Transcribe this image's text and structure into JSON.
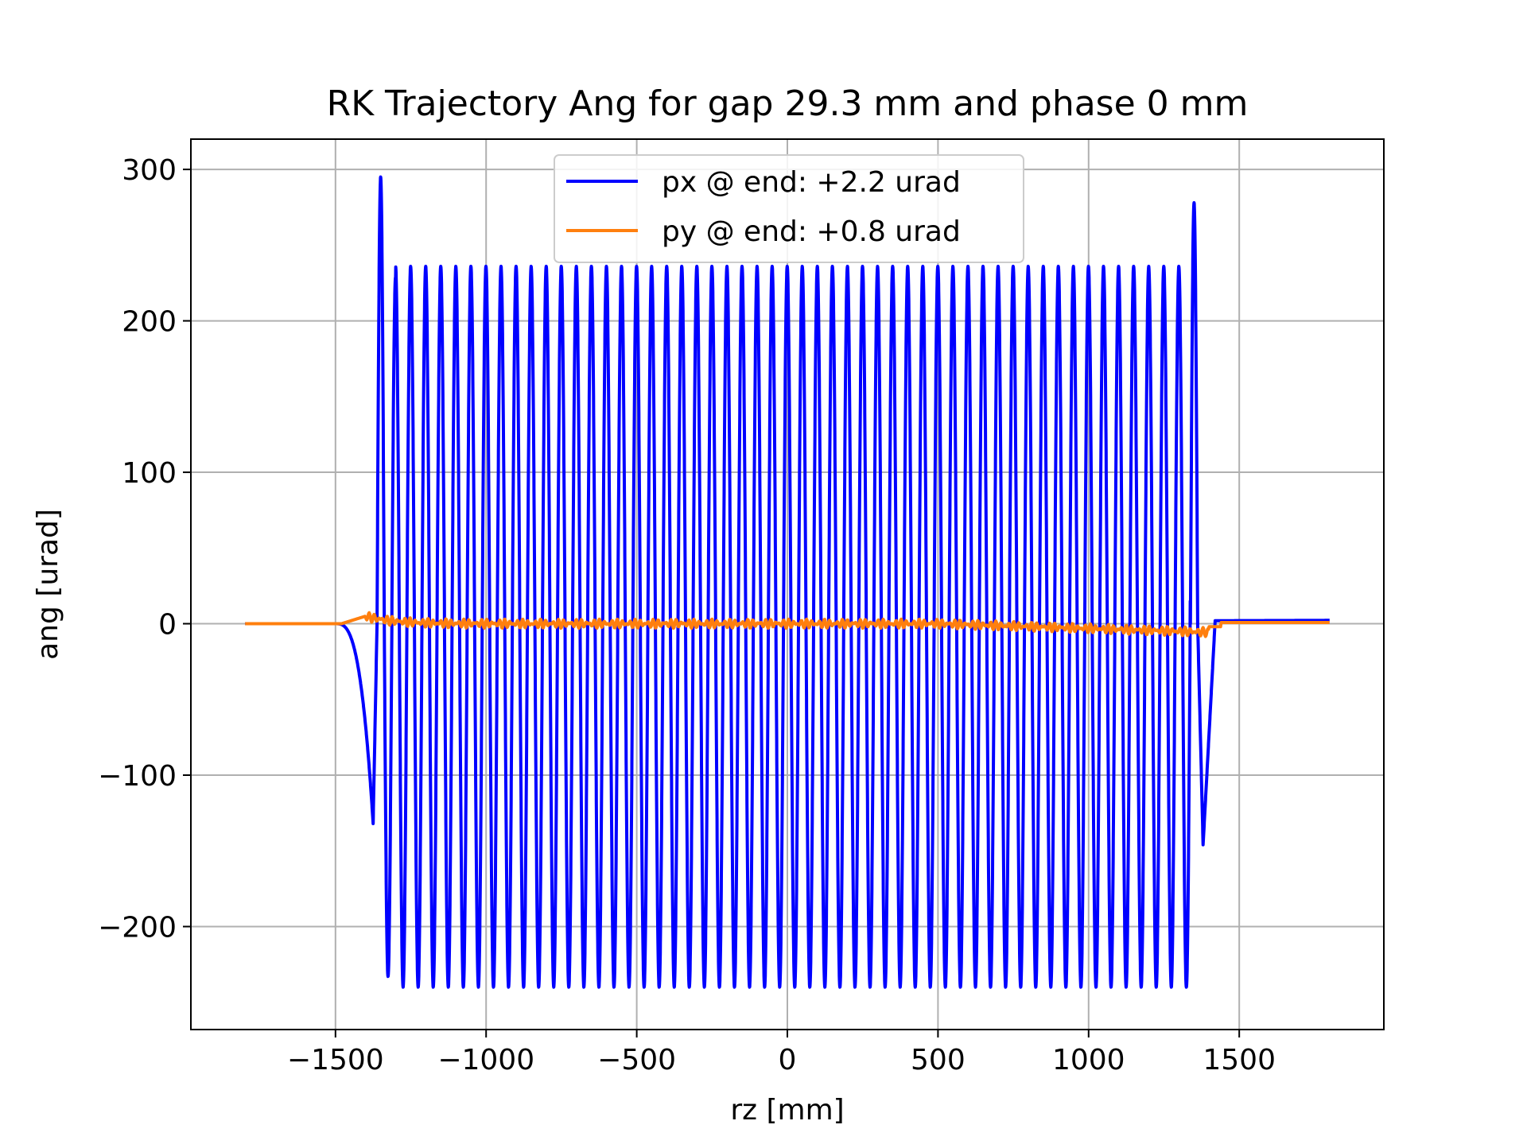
{
  "chart_data": {
    "type": "line",
    "title": "RK Trajectory Ang for gap 29.3 mm and phase 0 mm",
    "xlabel": "rz [mm]",
    "ylabel": "ang [urad]",
    "xlim": [
      -1980,
      1980
    ],
    "ylim": [
      -268,
      320
    ],
    "xticks": [
      -1500,
      -1000,
      -500,
      0,
      500,
      1000,
      1500
    ],
    "xtick_labels": [
      "−1500",
      "−1000",
      "−500",
      "0",
      "500",
      "1000",
      "1500"
    ],
    "yticks": [
      -200,
      -100,
      0,
      100,
      200,
      300
    ],
    "ytick_labels": [
      "−200",
      "−100",
      "0",
      "100",
      "200",
      "300"
    ],
    "grid": true,
    "legend_position": "top-center",
    "series": [
      {
        "name": "px @ end: +2.2 urad",
        "color": "#0000ff",
        "model": {
          "type": "undulator-oscillation",
          "x_start": -1800,
          "x_end": 1800,
          "period_mm": 50,
          "amplitude_urad": 236,
          "max_urad": 236,
          "min_urad": -240,
          "left_entrance_min": {
            "x": -1375,
            "y": -132
          },
          "left_entrance_max": {
            "x": -1350,
            "y": 295
          },
          "right_exit_max": {
            "x": 1350,
            "y": 278
          },
          "right_exit_min": {
            "x": 1380,
            "y": -146
          },
          "end_value_urad": 2.2
        }
      },
      {
        "name": "py @ end: +0.8 urad",
        "color": "#ff7f0e",
        "model": {
          "type": "small-ripple",
          "x_start": -1800,
          "x_end": 1800,
          "entrance_peak": {
            "x": -1400,
            "y": 5
          },
          "ripple_amplitude_urad": 3,
          "end_value_urad": 0.8
        }
      }
    ]
  }
}
